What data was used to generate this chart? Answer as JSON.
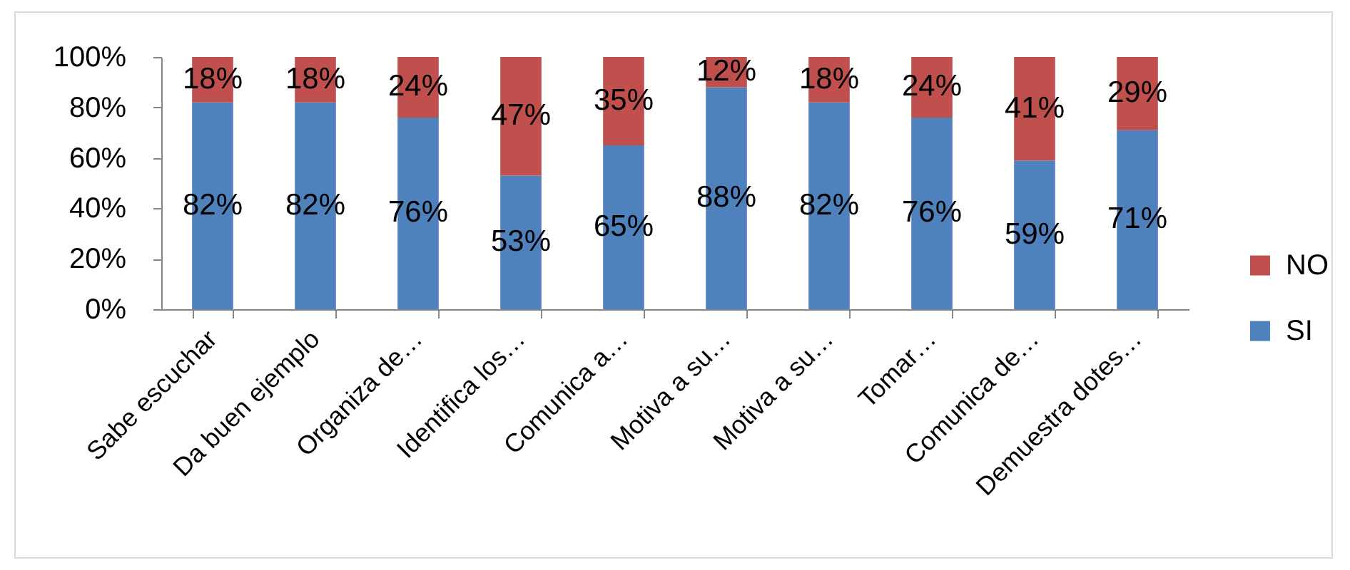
{
  "chart_data": {
    "type": "bar",
    "stacked": true,
    "categories": [
      "Sabe escuchar",
      "Da buen ejemplo",
      "Organiza de…",
      "Identifica los…",
      "Comunica a…",
      "Motiva a su…",
      "Motiva a su…",
      "Tomar…",
      "Comunica de…",
      "Demuestra dotes…"
    ],
    "series": [
      {
        "name": "SI",
        "color": "#4f81bd",
        "values": [
          82,
          82,
          76,
          53,
          65,
          88,
          82,
          76,
          59,
          71
        ],
        "value_labels": [
          "82%",
          "82%",
          "76%",
          "53%",
          "65%",
          "88%",
          "82%",
          "76%",
          "59%",
          "71%"
        ]
      },
      {
        "name": "NO",
        "color": "#c0504d",
        "values": [
          18,
          18,
          24,
          47,
          35,
          12,
          18,
          24,
          41,
          29
        ],
        "value_labels": [
          "18%",
          "18%",
          "24%",
          "47%",
          "35%",
          "12%",
          "18%",
          "24%",
          "41%",
          "29%"
        ]
      }
    ],
    "ylim": [
      0,
      100
    ],
    "yticks": [
      {
        "value": 0,
        "label": "0%"
      },
      {
        "value": 20,
        "label": "20%"
      },
      {
        "value": 40,
        "label": "40%"
      },
      {
        "value": 60,
        "label": "60%"
      },
      {
        "value": 80,
        "label": "80%"
      },
      {
        "value": 100,
        "label": "100%"
      }
    ],
    "grid": false,
    "legend": "right"
  }
}
